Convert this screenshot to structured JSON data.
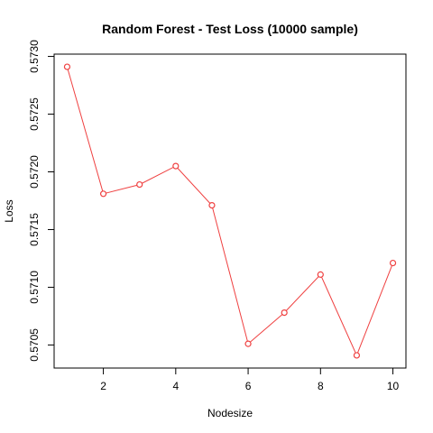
{
  "chart_data": {
    "type": "line",
    "title": "Random Forest - Test Loss (10000 sample)",
    "xlabel": "Nodesize",
    "ylabel": "Loss",
    "x": [
      1,
      2,
      3,
      4,
      5,
      6,
      7,
      8,
      9,
      10
    ],
    "series": [
      {
        "values": [
          0.57291,
          0.57181,
          0.57189,
          0.57205,
          0.57171,
          0.57051,
          0.57078,
          0.57111,
          0.57041,
          0.57121
        ]
      }
    ],
    "xlim": [
      0.64,
      10.36
    ],
    "ylim": [
      0.5703,
      0.57302
    ],
    "xticks": [
      2,
      4,
      6,
      8,
      10
    ],
    "yticks": [
      0.5705,
      0.571,
      0.5715,
      0.572,
      0.5725,
      0.573
    ],
    "ytick_labels": [
      "0.5705",
      "0.5710",
      "0.5715",
      "0.5720",
      "0.5725",
      "0.5730"
    ],
    "color": "#ef4040",
    "markers": "open-circle",
    "grid": false,
    "legend": "none"
  }
}
